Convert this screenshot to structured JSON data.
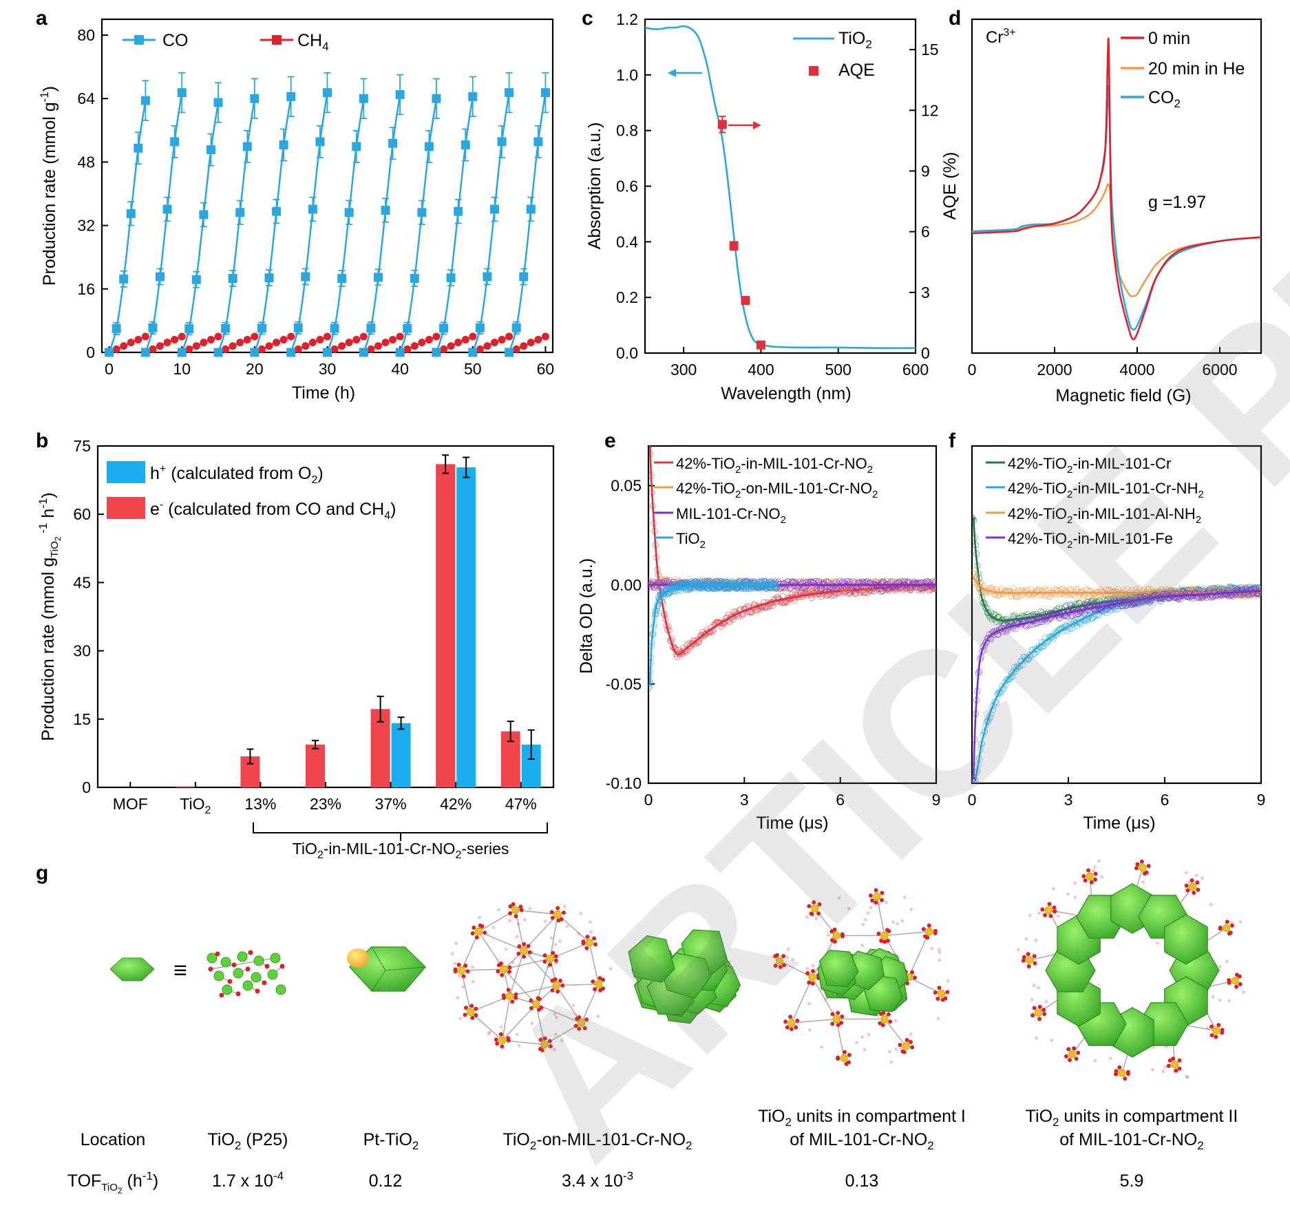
{
  "watermark": "ARTICLE PREVIEW",
  "panel_labels": [
    "a",
    "b",
    "c",
    "d",
    "e",
    "f",
    "g"
  ],
  "chart_data": [
    {
      "id": "a",
      "type": "line",
      "title": "",
      "xlabel": "Time (h)",
      "ylabel": "Production rate (mmol g-1)",
      "xlim": [
        -1,
        61
      ],
      "ylim": [
        0,
        84
      ],
      "xticks": [
        0,
        10,
        20,
        30,
        40,
        50,
        60
      ],
      "yticks": [
        0,
        16,
        32,
        48,
        64,
        80
      ],
      "legend": [
        "CO",
        "CH4"
      ],
      "colors": {
        "CO": "#2aa7e0",
        "CH4": "#e0202a"
      },
      "cycle_hours": 5,
      "cycles": 12,
      "co_cycle_offsets": [
        0,
        1,
        2,
        3,
        4,
        5
      ],
      "co_cycle_values": [
        0,
        6,
        18.5,
        35,
        51.5,
        63.5
      ],
      "co_cycle_peaks": [
        63.5,
        65.5,
        63,
        64,
        64.5,
        65.5,
        64,
        65,
        64,
        64.5,
        65.5,
        65.5
      ],
      "co_error": [
        1,
        1.5,
        2,
        3,
        4,
        5
      ],
      "ch4_cycle_offsets": [
        0,
        1,
        2,
        3,
        4,
        5
      ],
      "ch4_cycle_values": [
        0,
        0.8,
        1.6,
        2.5,
        3.2,
        4.0
      ]
    },
    {
      "id": "b",
      "type": "bar",
      "xlabel": "TiO2-in-MIL-101-Cr-NO2-series",
      "ylabel": "Production rate (mmol gTiO2-1 h-1)",
      "ylim": [
        0,
        75
      ],
      "yticks": [
        0,
        15,
        30,
        45,
        60,
        75
      ],
      "categories": [
        "MOF",
        "TiO2",
        "13%",
        "23%",
        "37%",
        "42%",
        "47%"
      ],
      "series": [
        {
          "name": "e- (calculated from CO and CH4)",
          "color": "#f0454a",
          "values": [
            0,
            0.2,
            6.8,
            9.4,
            17.2,
            71.0,
            12.3
          ],
          "errors": [
            0,
            0,
            1.6,
            0.9,
            2.8,
            2.0,
            2.2
          ]
        },
        {
          "name": "h+ (calculated from O2)",
          "color": "#1aaef0",
          "values": [
            0,
            0,
            0,
            0,
            14.1,
            70.3,
            9.4
          ],
          "errors": [
            0,
            0,
            0,
            0,
            1.3,
            2.2,
            3.2
          ]
        }
      ],
      "legend": [
        "h+ (calculated from O2)",
        "e- (calculated from CO and CH4)"
      ]
    },
    {
      "id": "c",
      "type": "line",
      "xlabel": "Wavelength (nm)",
      "ylabel": "Absorption (a.u.)",
      "ylabel_right": "AQE (%)",
      "xlim": [
        250,
        600
      ],
      "ylim": [
        0,
        1.2
      ],
      "ylim_right": [
        0,
        16.5
      ],
      "xticks": [
        300,
        400,
        500,
        600
      ],
      "yticks": [
        0.0,
        0.2,
        0.4,
        0.6,
        0.8,
        1.0,
        1.2
      ],
      "yticks_right": [
        0,
        3,
        6,
        9,
        12,
        15
      ],
      "legend": [
        "TiO2",
        "AQE"
      ],
      "absorption": {
        "x": [
          250,
          260,
          270,
          280,
          290,
          300,
          310,
          320,
          330,
          335,
          340,
          345,
          350,
          355,
          360,
          365,
          370,
          375,
          380,
          385,
          390,
          395,
          400,
          410,
          420,
          450,
          500,
          550,
          600
        ],
        "y": [
          1.17,
          1.165,
          1.165,
          1.17,
          1.17,
          1.175,
          1.165,
          1.13,
          1.04,
          0.97,
          0.9,
          0.84,
          0.77,
          0.67,
          0.55,
          0.42,
          0.3,
          0.2,
          0.13,
          0.08,
          0.05,
          0.035,
          0.03,
          0.025,
          0.022,
          0.02,
          0.02,
          0.018,
          0.018
        ]
      },
      "aqe": {
        "x": [
          350,
          365,
          380,
          400
        ],
        "y": [
          11.3,
          5.3,
          2.6,
          0.4
        ],
        "errors": [
          0.4,
          0.2,
          0.15,
          0.05
        ]
      }
    },
    {
      "id": "d",
      "type": "line",
      "xlabel": "Magnetic field (G)",
      "xlim": [
        0,
        7000
      ],
      "xticks": [
        0,
        2000,
        4000,
        6000
      ],
      "annotations": [
        "Cr3+",
        "g =1.97"
      ],
      "legend": [
        "0 min",
        "20 min in He",
        "CO2"
      ],
      "series": [
        {
          "name": "0 min",
          "color": "#e0202a",
          "x": [
            0,
            1000,
            1200,
            1500,
            2000,
            2500,
            2800,
            3000,
            3100,
            3200,
            3250,
            3300,
            3330,
            3360,
            3400,
            3500,
            3600,
            3800,
            3900,
            4000,
            4200,
            4500,
            5000,
            6000,
            7000
          ],
          "y": [
            0.51,
            0.52,
            0.53,
            0.545,
            0.56,
            0.6,
            0.66,
            0.72,
            0.78,
            0.88,
            1.05,
            1.5,
            1.2,
            0.7,
            0.48,
            0.3,
            0.18,
            0.02,
            -0.03,
            0.0,
            0.12,
            0.3,
            0.42,
            0.47,
            0.49
          ]
        },
        {
          "name": "20 min in He",
          "color": "#f39a4a",
          "x": [
            0,
            1000,
            1200,
            1500,
            2000,
            2500,
            2800,
            3000,
            3200,
            3300,
            3350,
            3400,
            3500,
            3600,
            3800,
            3900,
            4000,
            4200,
            4500,
            5000,
            6000,
            7000
          ],
          "y": [
            0.51,
            0.52,
            0.535,
            0.545,
            0.55,
            0.57,
            0.6,
            0.64,
            0.71,
            0.76,
            0.7,
            0.5,
            0.35,
            0.28,
            0.2,
            0.19,
            0.2,
            0.27,
            0.36,
            0.43,
            0.47,
            0.49
          ]
        },
        {
          "name": "CO2",
          "color": "#2aa7e0",
          "x": [
            0,
            1000,
            1200,
            1500,
            2000,
            2500,
            2800,
            3000,
            3100,
            3200,
            3250,
            3300,
            3330,
            3360,
            3400,
            3500,
            3600,
            3800,
            3900,
            4000,
            4200,
            4500,
            5000,
            6000,
            7000
          ],
          "y": [
            0.52,
            0.53,
            0.545,
            0.555,
            0.56,
            0.6,
            0.66,
            0.72,
            0.78,
            0.9,
            1.0,
            1.26,
            1.1,
            0.85,
            0.62,
            0.4,
            0.25,
            0.06,
            0.02,
            0.04,
            0.14,
            0.3,
            0.41,
            0.47,
            0.49
          ]
        }
      ]
    },
    {
      "id": "e",
      "type": "scatter",
      "xlabel": "Time (μs)",
      "ylabel": "Delta OD (a.u.)",
      "xlim": [
        0,
        9
      ],
      "ylim": [
        -0.1,
        0.07
      ],
      "xticks": [
        0,
        3,
        6,
        9
      ],
      "yticks": [
        -0.1,
        -0.05,
        0.0,
        0.05
      ],
      "legend": [
        "42%-TiO2-in-MIL-101-Cr-NO2",
        "42%-TiO2-on-MIL-101-Cr-NO2",
        "MIL-101-Cr-NO2",
        "TiO2"
      ],
      "series": [
        {
          "name": "42%-TiO2-in-MIL-101-Cr-NO2",
          "color": "#e0303a",
          "x": [
            0.05,
            0.1,
            0.2,
            0.3,
            0.5,
            0.7,
            0.9,
            1.2,
            1.5,
            2,
            2.5,
            3,
            4,
            5,
            6,
            7,
            8,
            9
          ],
          "y": [
            0.07,
            0.05,
            0.025,
            0.005,
            -0.015,
            -0.028,
            -0.035,
            -0.032,
            -0.028,
            -0.022,
            -0.017,
            -0.013,
            -0.008,
            -0.005,
            -0.003,
            -0.002,
            -0.001,
            -0.001
          ]
        },
        {
          "name": "42%-TiO2-on-MIL-101-Cr-NO2",
          "color": "#f39a4a",
          "x": [
            0,
            0.5,
            1,
            2,
            3,
            4,
            5,
            6,
            7,
            8,
            9
          ],
          "y": [
            0.001,
            0.001,
            0.001,
            0.001,
            0.0,
            0.0,
            0.0,
            0.0,
            0.0,
            0.0,
            0.0
          ]
        },
        {
          "name": "MIL-101-Cr-NO2",
          "color": "#7a2fd0",
          "x": [
            0,
            1,
            2,
            3,
            4,
            5,
            6,
            7,
            8,
            9
          ],
          "y": [
            0.0,
            0.0,
            0.0,
            0.0,
            0.0,
            0.0,
            0.0,
            0.0,
            0.0,
            0.0
          ]
        },
        {
          "name": "TiO2",
          "color": "#2aa7e0",
          "x": [
            0.05,
            0.1,
            0.2,
            0.3,
            0.5,
            0.7,
            1,
            1.5,
            2,
            2.5,
            3,
            4
          ],
          "y": [
            -0.05,
            -0.03,
            -0.015,
            -0.008,
            -0.004,
            -0.002,
            -0.001,
            0.0,
            0.0,
            0.0,
            0.0,
            0.0
          ]
        }
      ]
    },
    {
      "id": "f",
      "type": "scatter",
      "xlabel": "Time (μs)",
      "xlim": [
        0,
        9
      ],
      "ylim": [
        -0.1,
        0.07
      ],
      "xticks": [
        0,
        3,
        6,
        9
      ],
      "legend": [
        "42%-TiO2-in-MIL-101-Cr",
        "42%-TiO2-in-MIL-101-Cr-NH2",
        "42%-TiO2-in-MIL-101-Al-NH2",
        "42%-TiO2-in-MIL-101-Fe"
      ],
      "series": [
        {
          "name": "42%-TiO2-in-MIL-101-Cr",
          "color": "#1e7a3c",
          "x": [
            0.05,
            0.1,
            0.2,
            0.3,
            0.5,
            0.7,
            1,
            1.5,
            2,
            2.5,
            3,
            4,
            5,
            6,
            7,
            8,
            9
          ],
          "y": [
            0.034,
            0.02,
            0.005,
            -0.006,
            -0.014,
            -0.017,
            -0.018,
            -0.017,
            -0.016,
            -0.014,
            -0.012,
            -0.009,
            -0.007,
            -0.005,
            -0.004,
            -0.003,
            -0.003
          ]
        },
        {
          "name": "42%-TiO2-in-MIL-101-Cr-NH2",
          "color": "#2aa7e0",
          "x": [
            0.1,
            0.2,
            0.3,
            0.5,
            0.7,
            1,
            1.5,
            2,
            2.5,
            3,
            4,
            5,
            6,
            7,
            8,
            9
          ],
          "y": [
            -0.099,
            -0.09,
            -0.08,
            -0.068,
            -0.059,
            -0.05,
            -0.04,
            -0.032,
            -0.026,
            -0.021,
            -0.013,
            -0.008,
            -0.005,
            -0.004,
            -0.003,
            -0.003
          ]
        },
        {
          "name": "42%-TiO2-in-MIL-101-Al-NH2",
          "color": "#f39a4a",
          "x": [
            0.05,
            0.2,
            0.5,
            1,
            2,
            3,
            4,
            5,
            6,
            7,
            8,
            9
          ],
          "y": [
            0.004,
            0.0,
            -0.003,
            -0.004,
            -0.004,
            -0.004,
            -0.004,
            -0.004,
            -0.004,
            -0.004,
            -0.004,
            -0.004
          ]
        },
        {
          "name": "42%-TiO2-in-MIL-101-Fe",
          "color": "#7a2fd0",
          "x": [
            0.05,
            0.1,
            0.2,
            0.3,
            0.5,
            0.7,
            1,
            1.5,
            2,
            3,
            4,
            5,
            6,
            7,
            8,
            9
          ],
          "y": [
            -0.098,
            -0.07,
            -0.045,
            -0.034,
            -0.027,
            -0.024,
            -0.022,
            -0.02,
            -0.018,
            -0.014,
            -0.011,
            -0.008,
            -0.006,
            -0.005,
            -0.004,
            -0.003
          ]
        }
      ]
    }
  ],
  "panel_g": {
    "row_labels": [
      "Location",
      "TOFTiO2 (h-1)"
    ],
    "columns": [
      {
        "location": "TiO2 (P25)",
        "tof": "1.7 x 10-4"
      },
      {
        "location": "Pt-TiO2",
        "tof": "0.12"
      },
      {
        "location": "TiO2-on-MIL-101-Cr-NO2",
        "tof": "3.4 x 10-3"
      },
      {
        "location": "TiO2 units in compartment I of MIL-101-Cr-NO2",
        "tof": "0.13"
      },
      {
        "location": "TiO2 units in compartment II of MIL-101-Cr-NO2",
        "tof": "5.9"
      }
    ],
    "equiv_symbol": "≡",
    "colors": {
      "tio2": "#5fd23a",
      "tio2_dark": "#3a9a22",
      "oxygen": "#e02020",
      "cr": "#f2c21a",
      "linker": "#9a9a9a"
    }
  }
}
